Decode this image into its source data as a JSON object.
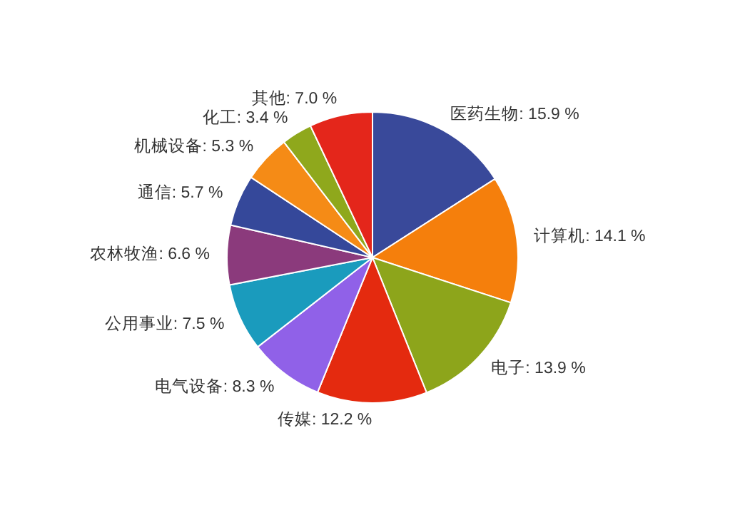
{
  "chart_data": {
    "type": "pie",
    "categories": [
      "医药生物",
      "计算机",
      "电子",
      "传媒",
      "电气设备",
      "公用事业",
      "农林牧渔",
      "通信",
      "机械设备",
      "化工",
      "其他"
    ],
    "values": [
      15.9,
      14.1,
      13.9,
      12.2,
      8.3,
      7.5,
      6.6,
      5.7,
      5.3,
      3.4,
      7.0
    ],
    "value_labels": [
      "15.9 %",
      "14.1 %",
      "13.9 %",
      "12.2 %",
      "8.3 %",
      "7.5 %",
      "6.6 %",
      "5.7 %",
      "5.3 %",
      "3.4 %",
      "7.0 %"
    ],
    "colors": [
      "#39499a",
      "#f57f0c",
      "#8da51b",
      "#e42a0f",
      "#9061e8",
      "#1a9bbd",
      "#8b3a7c",
      "#35489a",
      "#f58b16",
      "#8fa81c",
      "#e4261b"
    ]
  }
}
